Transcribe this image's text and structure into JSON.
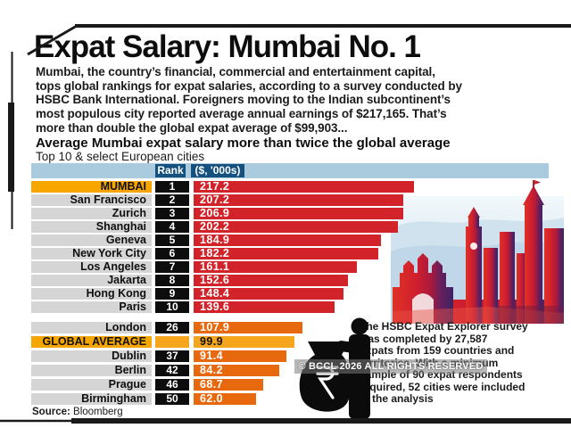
{
  "page": {
    "title": "Expat Salary: Mumbai No. 1",
    "intro": "Mumbai, the country’s financial, commercial and entertainment capital,\ntops global rankings for expat salaries, according to a survey conducted by\nHSBC Bank International. Foreigners moving to the Indian subcontinent’s\nmost populous city reported average annual earnings of $217,165. That’s\nmore than double the global expat average of $99,903...",
    "chart_heading": "Average Mumbai expat salary more than twice the global average",
    "chart_subheading": "Top 10 & select European cities",
    "annotation": "The HSBC Expat Explorer survey\nwas completed by 27,587\nexpats from 159 countries and\nterritories. With a minimum\nsample of 90 expat respondents\nrequired, 52 cities were included\nin the analysis",
    "watermark": "© BCCL 2026 ALL RIGHTS RESERVED",
    "source_label": "Source:",
    "source_value": "Bloomberg"
  },
  "columns": {
    "rank": "Rank",
    "value": "($, '000s)"
  },
  "chart_data": {
    "type": "bar",
    "orientation": "horizontal",
    "title": "Average Mumbai expat salary more than twice the global average",
    "subtitle": "Top 10 & select European cities",
    "value_unit": "($, '000s)",
    "xlim": [
      0,
      230
    ],
    "top10": [
      {
        "city": "MUMBAI",
        "rank": "1",
        "value": 217.2,
        "value_label": "217.2",
        "bar": "red",
        "highlight": true,
        "dark_text": false
      },
      {
        "city": "San Francisco",
        "rank": "2",
        "value": 207.2,
        "value_label": "207.2",
        "bar": "red",
        "highlight": false,
        "dark_text": false
      },
      {
        "city": "Zurich",
        "rank": "3",
        "value": 206.9,
        "value_label": "206.9",
        "bar": "red",
        "highlight": false,
        "dark_text": false
      },
      {
        "city": "Shanghai",
        "rank": "4",
        "value": 202.2,
        "value_label": "202.2",
        "bar": "red",
        "highlight": false,
        "dark_text": false
      },
      {
        "city": "Geneva",
        "rank": "5",
        "value": 184.9,
        "value_label": "184.9",
        "bar": "red",
        "highlight": false,
        "dark_text": false
      },
      {
        "city": "New York City",
        "rank": "6",
        "value": 182.2,
        "value_label": "182.2",
        "bar": "red",
        "highlight": false,
        "dark_text": false
      },
      {
        "city": "Los Angeles",
        "rank": "7",
        "value": 161.1,
        "value_label": "161.1",
        "bar": "red",
        "highlight": false,
        "dark_text": false
      },
      {
        "city": "Jakarta",
        "rank": "8",
        "value": 152.6,
        "value_label": "152.6",
        "bar": "red",
        "highlight": false,
        "dark_text": false
      },
      {
        "city": "Hong Kong",
        "rank": "9",
        "value": 148.4,
        "value_label": "148.4",
        "bar": "red",
        "highlight": false,
        "dark_text": false
      },
      {
        "city": "Paris",
        "rank": "10",
        "value": 139.6,
        "value_label": "139.6",
        "bar": "red",
        "highlight": false,
        "dark_text": false
      }
    ],
    "european": [
      {
        "city": "London",
        "rank": "26",
        "value": 107.9,
        "value_label": "107.9",
        "bar": "orange",
        "highlight": false,
        "dark_text": false
      },
      {
        "city": "GLOBAL AVERAGE",
        "rank": "",
        "value": 99.9,
        "value_label": "99.9",
        "bar": "amber",
        "highlight": true,
        "dark_text": true
      },
      {
        "city": "Dublin",
        "rank": "37",
        "value": 91.4,
        "value_label": "91.4",
        "bar": "orange",
        "highlight": false,
        "dark_text": false
      },
      {
        "city": "Berlin",
        "rank": "42",
        "value": 84.2,
        "value_label": "84.2",
        "bar": "orange",
        "highlight": false,
        "dark_text": false
      },
      {
        "city": "Prague",
        "rank": "46",
        "value": 68.7,
        "value_label": "68.7",
        "bar": "orange",
        "highlight": false,
        "dark_text": false
      },
      {
        "city": "Birmingham",
        "rank": "50",
        "value": 62.0,
        "value_label": "62.0",
        "bar": "orange",
        "highlight": false,
        "dark_text": false
      }
    ]
  },
  "colors": {
    "bar_red": "#d2232a",
    "bar_orange": "#e8680e",
    "bar_amber": "#f6a61c",
    "highlight_label": "#f7a600",
    "label_gray": "#d5d5d5",
    "rank_black": "#0d0d0d",
    "header_navy": "#15517e",
    "band_blue": "#a9cbdd",
    "frame_black": "#1a1a1a"
  }
}
